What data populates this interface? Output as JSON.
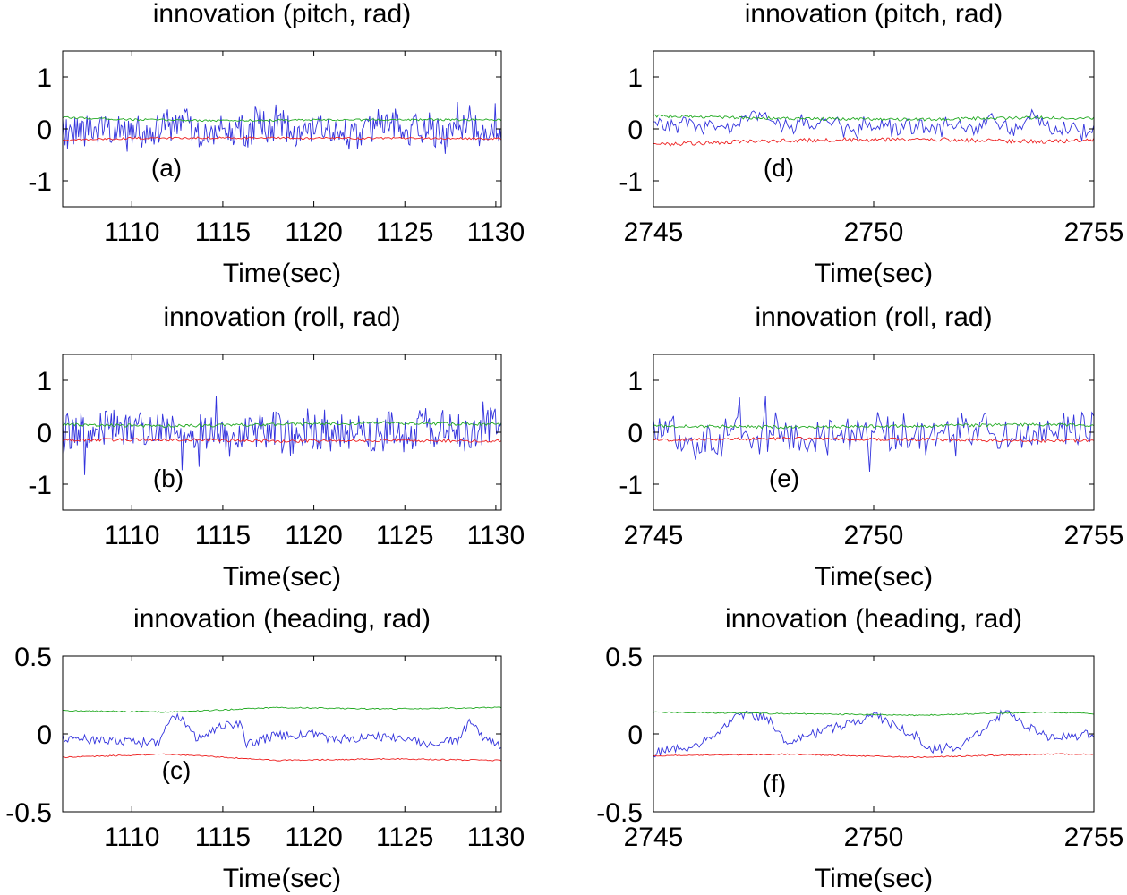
{
  "colors": {
    "innovation": "#3333dd",
    "upper": "#22aa22",
    "lower": "#ee2222"
  },
  "chart_data": [
    {
      "type": "line",
      "title": "innovation (pitch, rad)",
      "xlabel": "Time(sec)",
      "panel_label": "(a)",
      "xlim": [
        1106.2,
        1130.3
      ],
      "ylim": [
        -1.5,
        1.5
      ],
      "xticks": [
        1110,
        1115,
        1120,
        1125,
        1130
      ],
      "yticks": [
        1,
        0,
        -1
      ],
      "series": [
        {
          "name": "innovation",
          "color": "blue",
          "x_range": [
            1106.2,
            1130.3
          ],
          "n": 360,
          "base": 0.0,
          "spread": 0.28,
          "seed": 11
        },
        {
          "name": "upper bound",
          "color": "green",
          "anchors": [
            [
              1106.2,
              0.22
            ],
            [
              1110,
              0.18
            ],
            [
              1115,
              0.16
            ],
            [
              1120,
              0.17
            ],
            [
              1125,
              0.18
            ],
            [
              1130.3,
              0.17
            ]
          ],
          "jitter": 0.02
        },
        {
          "name": "lower bound",
          "color": "red",
          "anchors": [
            [
              1106.2,
              -0.22
            ],
            [
              1110,
              -0.18
            ],
            [
              1115,
              -0.17
            ],
            [
              1120,
              -0.18
            ],
            [
              1125,
              -0.18
            ],
            [
              1130.3,
              -0.19
            ]
          ],
          "jitter": 0.02
        }
      ]
    },
    {
      "type": "line",
      "title": "innovation (pitch, rad)",
      "xlabel": "Time(sec)",
      "panel_label": "(d)",
      "xlim": [
        2745,
        2755
      ],
      "ylim": [
        -1.5,
        1.5
      ],
      "xticks": [
        2745,
        2750,
        2755
      ],
      "yticks": [
        1,
        0,
        -1
      ],
      "series": [
        {
          "name": "innovation",
          "color": "blue",
          "x_range": [
            2745,
            2755
          ],
          "n": 220,
          "base": 0.08,
          "spread": 0.12,
          "seed": 22
        },
        {
          "name": "upper bound",
          "color": "green",
          "anchors": [
            [
              2745,
              0.25
            ],
            [
              2748,
              0.2
            ],
            [
              2751,
              0.18
            ],
            [
              2754,
              0.22
            ],
            [
              2755,
              0.2
            ]
          ],
          "jitter": 0.03
        },
        {
          "name": "lower bound",
          "color": "red",
          "anchors": [
            [
              2745,
              -0.3
            ],
            [
              2748,
              -0.22
            ],
            [
              2751,
              -0.2
            ],
            [
              2754,
              -0.25
            ],
            [
              2755,
              -0.2
            ]
          ],
          "jitter": 0.04
        }
      ]
    },
    {
      "type": "line",
      "title": "innovation (roll, rad)",
      "xlabel": "Time(sec)",
      "panel_label": "(b)",
      "xlim": [
        1106.2,
        1130.3
      ],
      "ylim": [
        -1.5,
        1.5
      ],
      "xticks": [
        1110,
        1115,
        1120,
        1125,
        1130
      ],
      "yticks": [
        1,
        0,
        -1
      ],
      "series": [
        {
          "name": "innovation",
          "color": "blue",
          "x_range": [
            1106.2,
            1130.3
          ],
          "n": 360,
          "base": 0.0,
          "spread": 0.35,
          "seed": 33
        },
        {
          "name": "upper bound",
          "color": "green",
          "anchors": [
            [
              1106.2,
              0.15
            ],
            [
              1112,
              0.12
            ],
            [
              1118,
              0.15
            ],
            [
              1124,
              0.18
            ],
            [
              1130.3,
              0.15
            ]
          ],
          "jitter": 0.03
        },
        {
          "name": "lower bound",
          "color": "red",
          "anchors": [
            [
              1106.2,
              -0.15
            ],
            [
              1112,
              -0.14
            ],
            [
              1118,
              -0.17
            ],
            [
              1124,
              -0.16
            ],
            [
              1130.3,
              -0.17
            ]
          ],
          "jitter": 0.03
        }
      ]
    },
    {
      "type": "line",
      "title": "innovation (roll, rad)",
      "xlabel": "Time(sec)",
      "panel_label": "(e)",
      "xlim": [
        2745,
        2755
      ],
      "ylim": [
        -1.5,
        1.5
      ],
      "xticks": [
        2745,
        2750,
        2755
      ],
      "yticks": [
        1,
        0,
        -1
      ],
      "series": [
        {
          "name": "innovation",
          "color": "blue",
          "x_range": [
            2745,
            2755
          ],
          "n": 220,
          "base": 0.0,
          "spread": 0.35,
          "seed": 44
        },
        {
          "name": "upper bound",
          "color": "green",
          "anchors": [
            [
              2745,
              0.12
            ],
            [
              2748,
              0.1
            ],
            [
              2751,
              0.12
            ],
            [
              2754,
              0.15
            ],
            [
              2755,
              0.13
            ]
          ],
          "jitter": 0.03
        },
        {
          "name": "lower bound",
          "color": "red",
          "anchors": [
            [
              2745,
              -0.15
            ],
            [
              2748,
              -0.12
            ],
            [
              2751,
              -0.14
            ],
            [
              2754,
              -0.17
            ],
            [
              2755,
              -0.15
            ]
          ],
          "jitter": 0.03
        }
      ]
    },
    {
      "type": "line",
      "title": "innovation (heading, rad)",
      "xlabel": "Time(sec)",
      "panel_label": "(c)",
      "xlim": [
        1106.2,
        1130.3
      ],
      "ylim": [
        -0.5,
        0.5
      ],
      "xticks": [
        1110,
        1115,
        1120,
        1125,
        1130
      ],
      "yticks": [
        0.5,
        0,
        -0.5
      ],
      "series": [
        {
          "name": "innovation",
          "color": "blue",
          "anchors": [
            [
              1106.2,
              -0.02
            ],
            [
              1107,
              -0.03
            ],
            [
              1108,
              -0.04
            ],
            [
              1110,
              -0.06
            ],
            [
              1111.5,
              -0.05
            ],
            [
              1112.2,
              0.12
            ],
            [
              1112.8,
              0.1
            ],
            [
              1113.5,
              -0.02
            ],
            [
              1115,
              0.05
            ],
            [
              1115.9,
              0.07
            ],
            [
              1116.3,
              -0.06
            ],
            [
              1118,
              -0.01
            ],
            [
              1120,
              0.0
            ],
            [
              1121,
              -0.04
            ],
            [
              1123,
              -0.02
            ],
            [
              1125,
              -0.03
            ],
            [
              1126,
              -0.06
            ],
            [
              1128,
              -0.04
            ],
            [
              1128.6,
              0.1
            ],
            [
              1129.3,
              -0.02
            ],
            [
              1130.3,
              -0.08
            ]
          ],
          "jitter": 0.03
        },
        {
          "name": "upper bound",
          "color": "green",
          "anchors": [
            [
              1106.2,
              0.15
            ],
            [
              1112,
              0.14
            ],
            [
              1118,
              0.17
            ],
            [
              1124,
              0.16
            ],
            [
              1130.3,
              0.17
            ]
          ],
          "jitter": 0.004
        },
        {
          "name": "lower bound",
          "color": "red",
          "anchors": [
            [
              1106.2,
              -0.15
            ],
            [
              1112,
              -0.13
            ],
            [
              1118,
              -0.17
            ],
            [
              1124,
              -0.16
            ],
            [
              1130.3,
              -0.17
            ]
          ],
          "jitter": 0.004
        }
      ]
    },
    {
      "type": "line",
      "title": "innovation (heading, rad)",
      "xlabel": "Time(sec)",
      "panel_label": "(f)",
      "xlim": [
        2745,
        2755
      ],
      "ylim": [
        -0.5,
        0.5
      ],
      "xticks": [
        2745,
        2750,
        2755
      ],
      "yticks": [
        0.5,
        0,
        -0.5
      ],
      "series": [
        {
          "name": "innovation",
          "color": "blue",
          "anchors": [
            [
              2745,
              -0.12
            ],
            [
              2746,
              -0.08
            ],
            [
              2747,
              0.13
            ],
            [
              2747.6,
              0.1
            ],
            [
              2748,
              -0.05
            ],
            [
              2749,
              0.03
            ],
            [
              2750,
              0.12
            ],
            [
              2751,
              -0.02
            ],
            [
              2751.1,
              -0.1
            ],
            [
              2752,
              -0.08
            ],
            [
              2753,
              0.15
            ],
            [
              2753.5,
              0.05
            ],
            [
              2754,
              -0.03
            ],
            [
              2755,
              0.0
            ]
          ],
          "jitter": 0.03
        },
        {
          "name": "upper bound",
          "color": "green",
          "anchors": [
            [
              2745,
              0.14
            ],
            [
              2748,
              0.13
            ],
            [
              2751,
              0.12
            ],
            [
              2754,
              0.14
            ],
            [
              2755,
              0.13
            ]
          ],
          "jitter": 0.004
        },
        {
          "name": "lower bound",
          "color": "red",
          "anchors": [
            [
              2745,
              -0.14
            ],
            [
              2748,
              -0.13
            ],
            [
              2751,
              -0.15
            ],
            [
              2754,
              -0.13
            ],
            [
              2755,
              -0.13
            ]
          ],
          "jitter": 0.004
        }
      ]
    }
  ]
}
